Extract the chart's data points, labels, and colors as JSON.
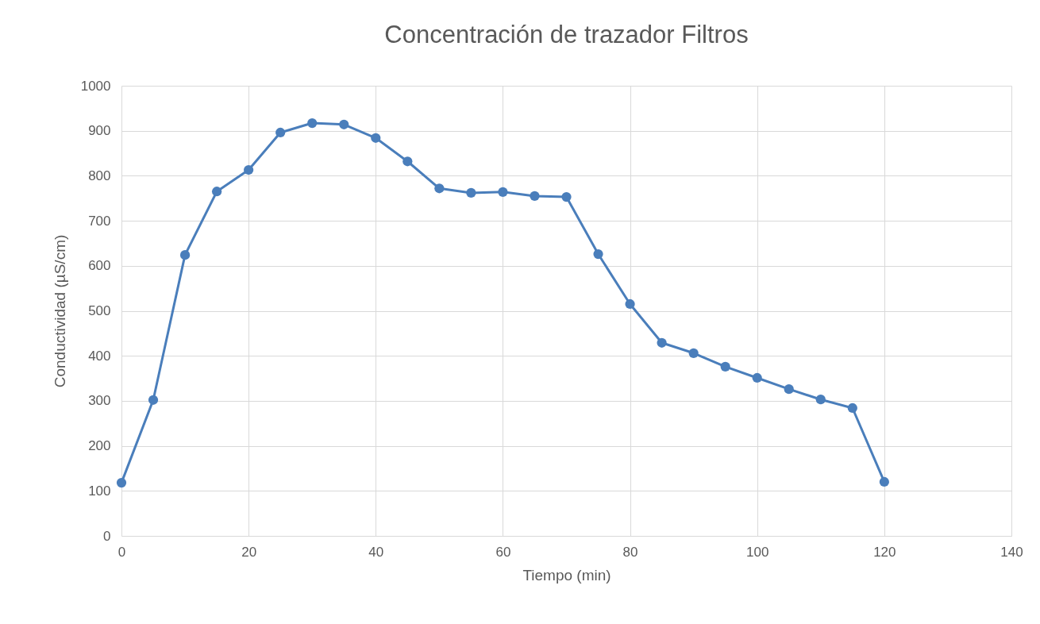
{
  "chart_data": {
    "type": "line",
    "title": "Concentración de trazador Filtros",
    "xlabel": "Tiempo (min)",
    "ylabel": "Conductividad (µS/cm)",
    "x": [
      0,
      5,
      10,
      15,
      20,
      25,
      30,
      35,
      40,
      45,
      50,
      55,
      60,
      65,
      70,
      75,
      80,
      85,
      90,
      95,
      100,
      105,
      110,
      115,
      120
    ],
    "series": [
      {
        "color": "#4a7ebb",
        "values": [
          118,
          302,
          624,
          765,
          813,
          896,
          917,
          914,
          884,
          832,
          772,
          762,
          764,
          755,
          753,
          626,
          515,
          429,
          406,
          376,
          351,
          326,
          303,
          284,
          120
        ]
      }
    ],
    "xlim": [
      0,
      140
    ],
    "xticks": [
      0,
      20,
      40,
      60,
      80,
      100,
      120,
      140
    ],
    "ylim": [
      0,
      1000
    ],
    "yticks": [
      0,
      100,
      200,
      300,
      400,
      500,
      600,
      700,
      800,
      900,
      1000
    ],
    "grid": true,
    "marker": "circle",
    "line_style": "solid",
    "legend": false
  }
}
